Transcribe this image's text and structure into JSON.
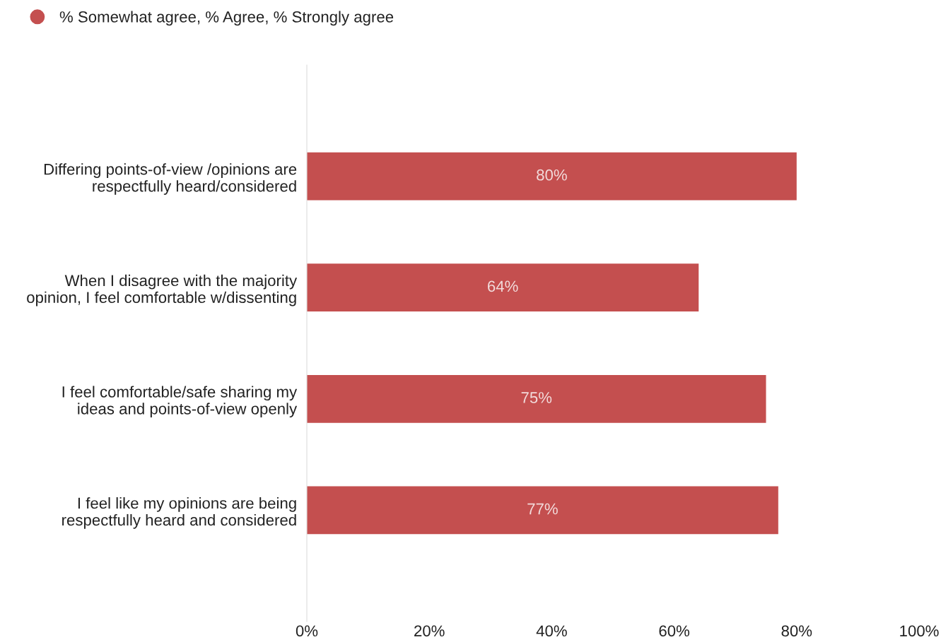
{
  "chart_data": {
    "type": "bar",
    "orientation": "horizontal",
    "categories": [
      "Differing points-of-view /opinions are\nrespectfully heard/considered",
      "When I disagree with the majority\nopinion, I feel comfortable w/dissenting",
      "I feel comfortable/safe sharing my\nideas and points-of-view openly",
      "I feel like my opinions are being\nrespectfully heard and considered"
    ],
    "series": [
      {
        "name": "% Somewhat agree, % Agree, % Strongly agree",
        "color": "#c44f4f",
        "values": [
          80,
          64,
          75,
          77
        ]
      }
    ],
    "value_labels": [
      "80%",
      "64%",
      "75%",
      "77%"
    ],
    "xlim": [
      0,
      100
    ],
    "xticks": [
      {
        "value": 0,
        "label": "0%"
      },
      {
        "value": 20,
        "label": "20%"
      },
      {
        "value": 40,
        "label": "40%"
      },
      {
        "value": 60,
        "label": "60%"
      },
      {
        "value": 80,
        "label": "80%"
      },
      {
        "value": 100,
        "label": "100%"
      }
    ],
    "grid": false,
    "legend": "top left"
  }
}
